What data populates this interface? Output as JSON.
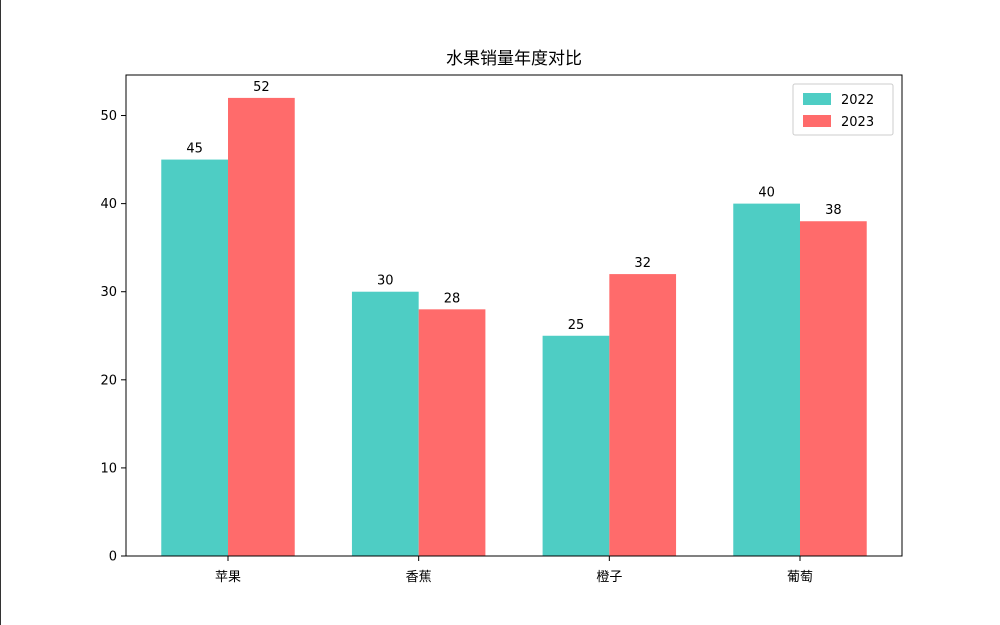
{
  "chart_data": {
    "type": "bar",
    "title": "水果销量年度对比",
    "xlabel": "",
    "ylabel": "",
    "categories": [
      "苹果",
      "香蕉",
      "橙子",
      "葡萄"
    ],
    "series": [
      {
        "name": "2022",
        "values": [
          45,
          30,
          25,
          40
        ],
        "color": "#4ECDC4"
      },
      {
        "name": "2023",
        "values": [
          52,
          28,
          32,
          38
        ],
        "color": "#FF6B6B"
      }
    ],
    "ylim": [
      0,
      54.6
    ],
    "yticks": [
      0,
      10,
      20,
      30,
      40,
      50
    ],
    "legend_position": "top-right",
    "grid": false
  }
}
